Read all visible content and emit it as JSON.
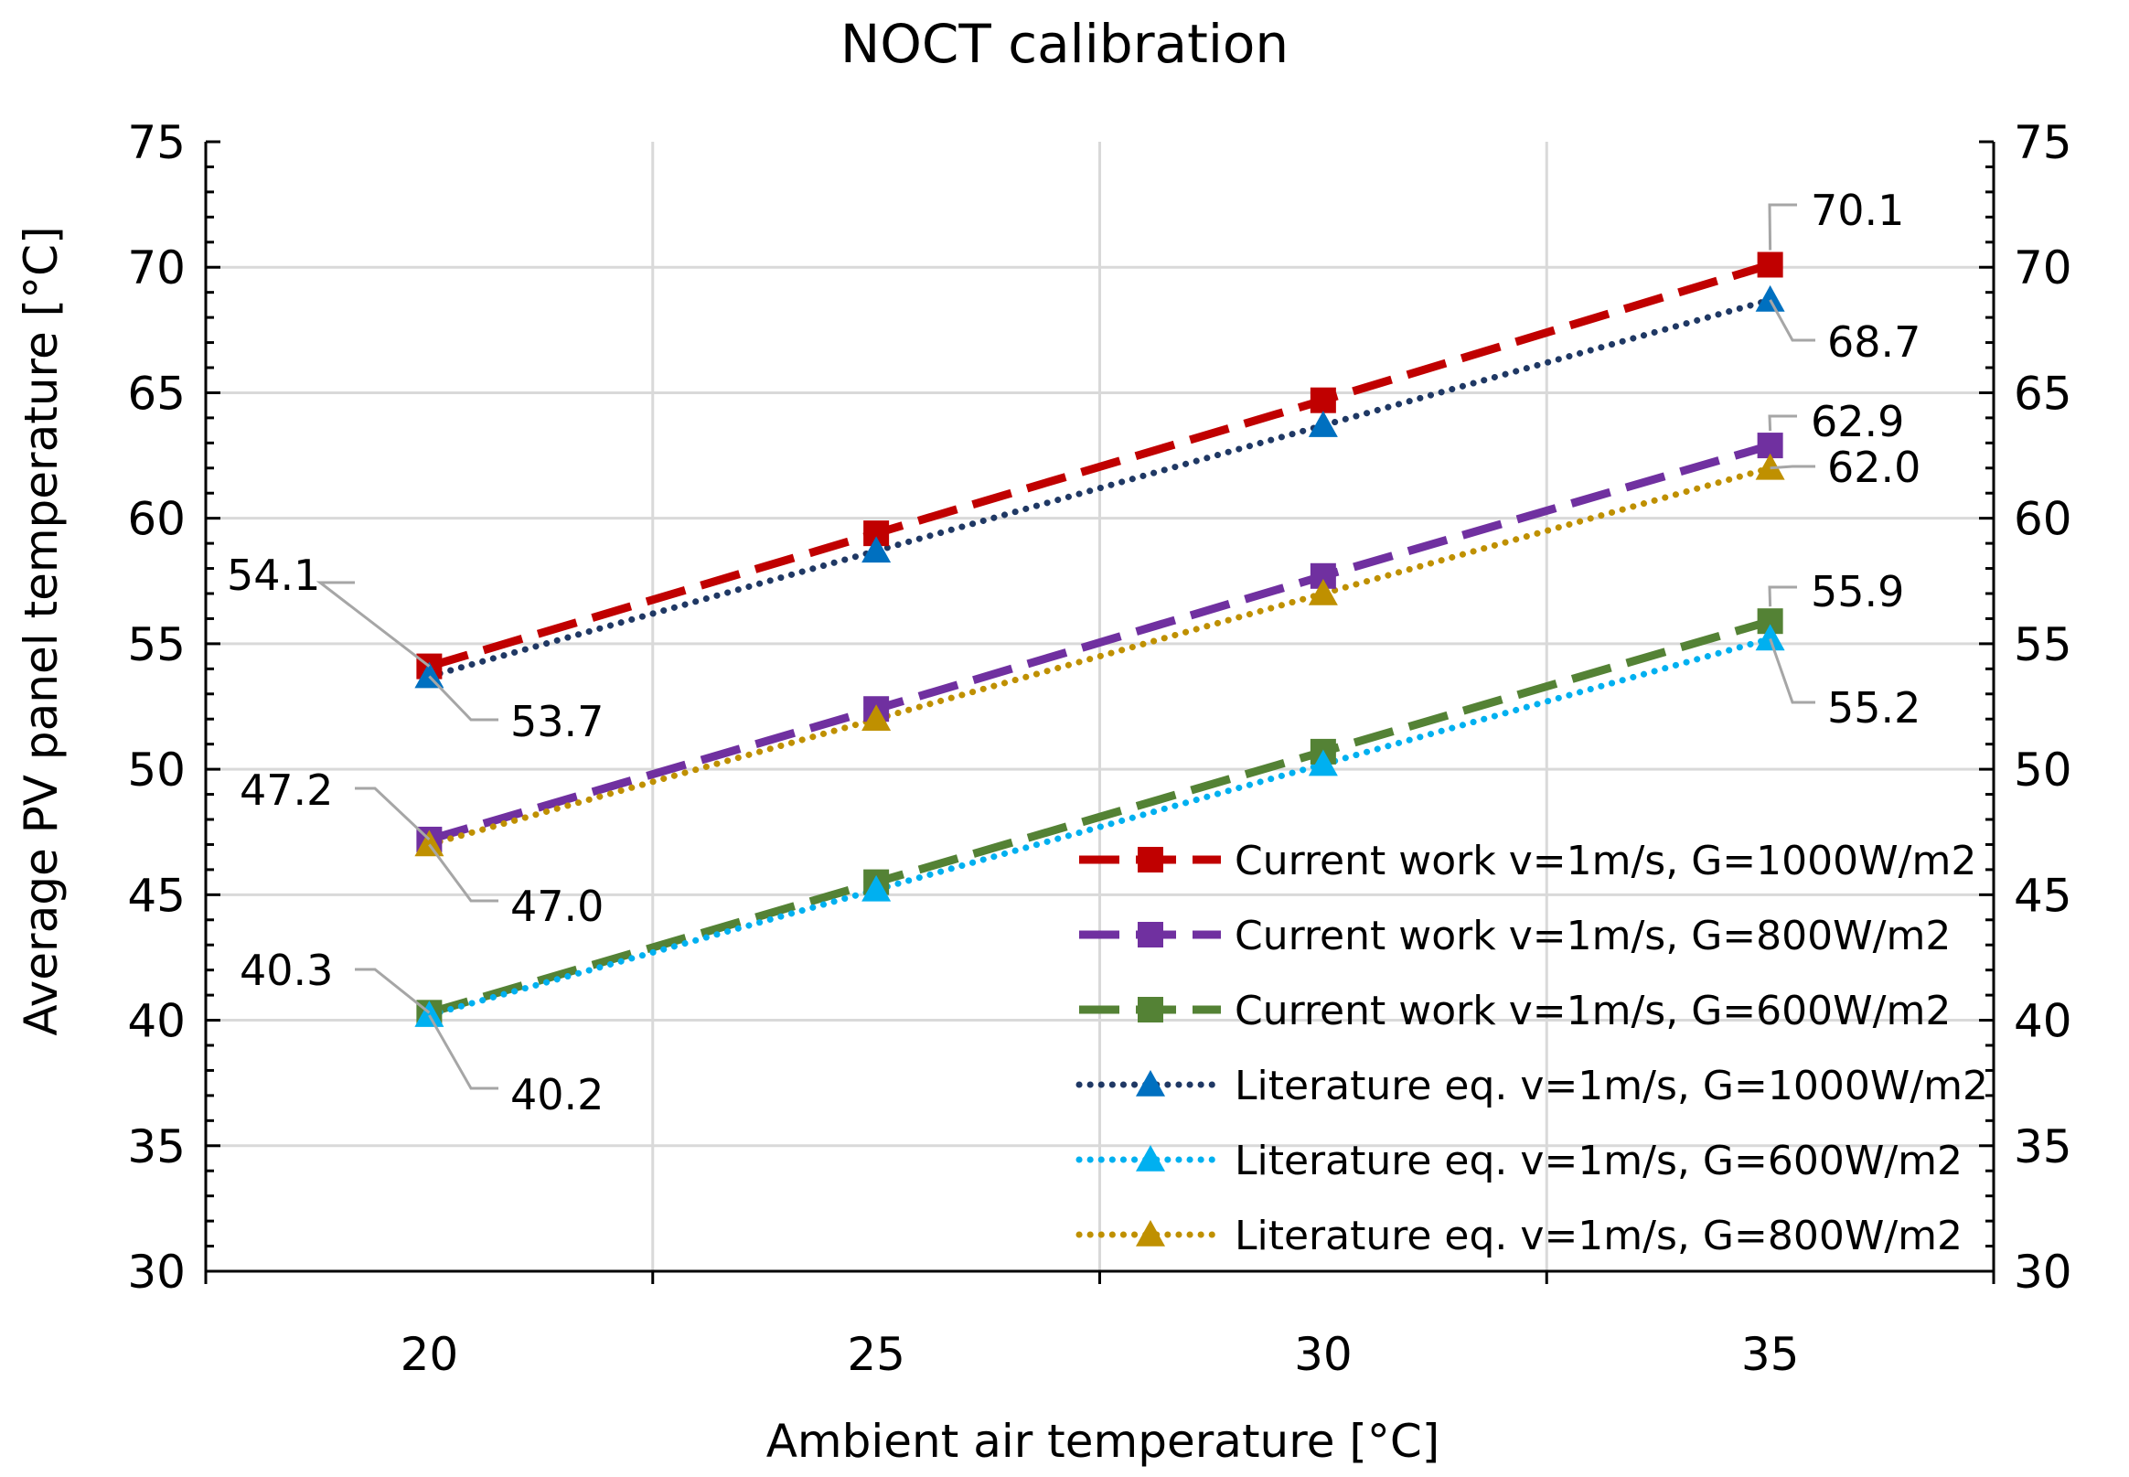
{
  "chart_data": {
    "type": "line",
    "title": "NOCT calibration",
    "xlabel": "Ambient air temperature  [°C]",
    "ylabel": "Average PV panel temperature  [°C]",
    "x": [
      20,
      25,
      30,
      35
    ],
    "xlim": [
      17.5,
      37.5
    ],
    "ylim": [
      30,
      75
    ],
    "xticks": [
      20,
      25,
      30,
      35
    ],
    "yticks": [
      30,
      35,
      40,
      45,
      50,
      55,
      60,
      65,
      70,
      75
    ],
    "grid": true,
    "legend_position": "bottom-right",
    "series": [
      {
        "name": "Current work v=1m/s, G=1000W/m2",
        "values": [
          54.1,
          59.4,
          64.7,
          70.1
        ],
        "color": "#c00000",
        "marker": "square",
        "line": "dashed"
      },
      {
        "name": "Current work v=1m/s, G=800W/m2",
        "values": [
          47.2,
          52.4,
          57.7,
          62.9
        ],
        "color": "#7030a0",
        "marker": "square",
        "line": "dashed"
      },
      {
        "name": "Current work v=1m/s, G=600W/m2",
        "values": [
          40.3,
          45.5,
          50.7,
          55.9
        ],
        "color": "#548235",
        "marker": "square",
        "line": "dashed"
      },
      {
        "name": "Literature eq. v=1m/s, G=1000W/m2",
        "values": [
          53.7,
          58.7,
          63.7,
          68.7
        ],
        "color": "#0070c0",
        "linecolor": "#1f3864",
        "marker": "triangle",
        "line": "dotted"
      },
      {
        "name": "Literature eq. v=1m/s, G=600W/m2",
        "values": [
          40.2,
          45.2,
          50.2,
          55.2
        ],
        "color": "#00b0f0",
        "marker": "triangle",
        "line": "dotted"
      },
      {
        "name": "Literature eq. v=1m/s, G=800W/m2",
        "values": [
          47.0,
          52.0,
          57.0,
          62.0
        ],
        "color": "#bf9000",
        "marker": "triangle",
        "line": "dotted"
      }
    ],
    "annotations": [
      {
        "text": "54.1",
        "x": 20,
        "y": 54.1
      },
      {
        "text": "53.7",
        "x": 20,
        "y": 53.7
      },
      {
        "text": "47.2",
        "x": 20,
        "y": 47.2
      },
      {
        "text": "47.0",
        "x": 20,
        "y": 47.0
      },
      {
        "text": "40.3",
        "x": 20,
        "y": 40.3
      },
      {
        "text": "40.2",
        "x": 20,
        "y": 40.2
      },
      {
        "text": "70.1",
        "x": 35,
        "y": 70.1
      },
      {
        "text": "68.7",
        "x": 35,
        "y": 68.7
      },
      {
        "text": "62.9",
        "x": 35,
        "y": 62.9
      },
      {
        "text": "62.0",
        "x": 35,
        "y": 62.0
      },
      {
        "text": "55.9",
        "x": 35,
        "y": 55.9
      },
      {
        "text": "55.2",
        "x": 35,
        "y": 55.2
      }
    ]
  }
}
